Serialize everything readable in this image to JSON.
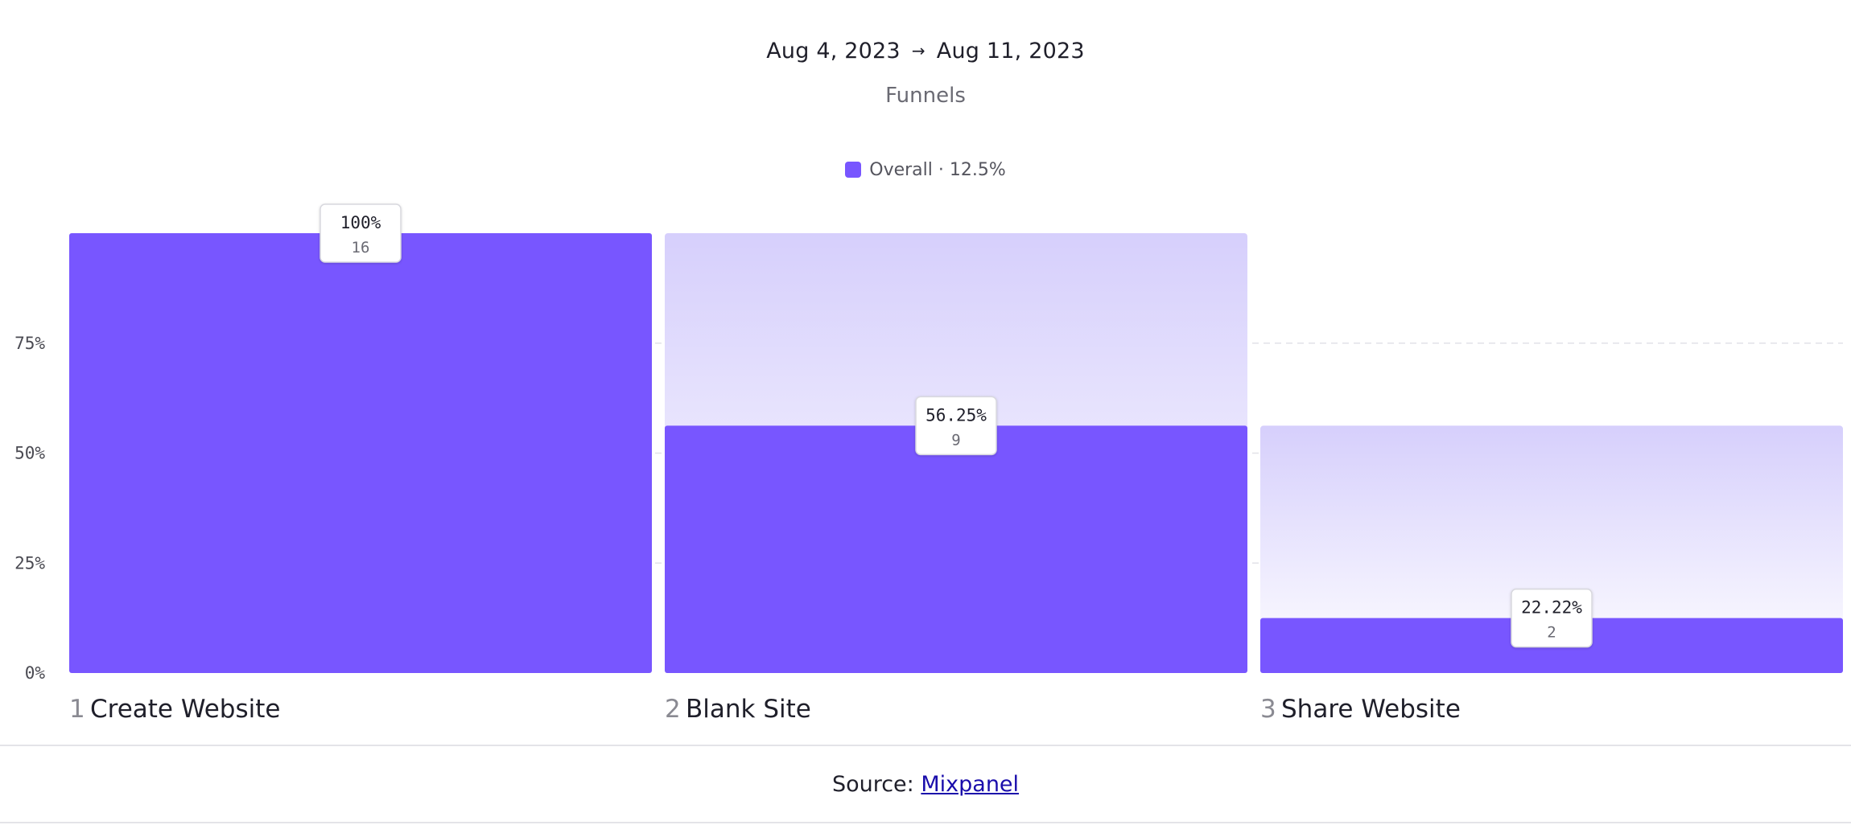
{
  "header": {
    "date_start": "Aug 4, 2023",
    "date_arrow": "→",
    "date_end": "Aug 11, 2023"
  },
  "legend": {
    "label": "Overall · 12.5%"
  },
  "footer": {
    "source_prefix": "Source: ",
    "source_link": "Mixpanel"
  },
  "colors": {
    "bar": "#7856ff",
    "bar_faded": "#d9d2fd",
    "grid": "#e2e2e8"
  },
  "chart_data": {
    "type": "bar",
    "title": "Funnels",
    "ylim": [
      0,
      100
    ],
    "yticks": [
      {
        "value": 0,
        "label": "0%"
      },
      {
        "value": 25,
        "label": "25%"
      },
      {
        "value": 50,
        "label": "50%"
      },
      {
        "value": 75,
        "label": "75%"
      }
    ],
    "grid": true,
    "legend_position": "top-center",
    "steps": [
      {
        "num": "1",
        "name": "Create Website",
        "value": 100,
        "label": "100%",
        "count": "16"
      },
      {
        "num": "2",
        "name": "Blank Site",
        "value": 56.25,
        "label": "56.25%",
        "count": "9"
      },
      {
        "num": "3",
        "name": "Share Website",
        "value": 12.5,
        "label": "22.22%",
        "count": "2"
      }
    ]
  }
}
